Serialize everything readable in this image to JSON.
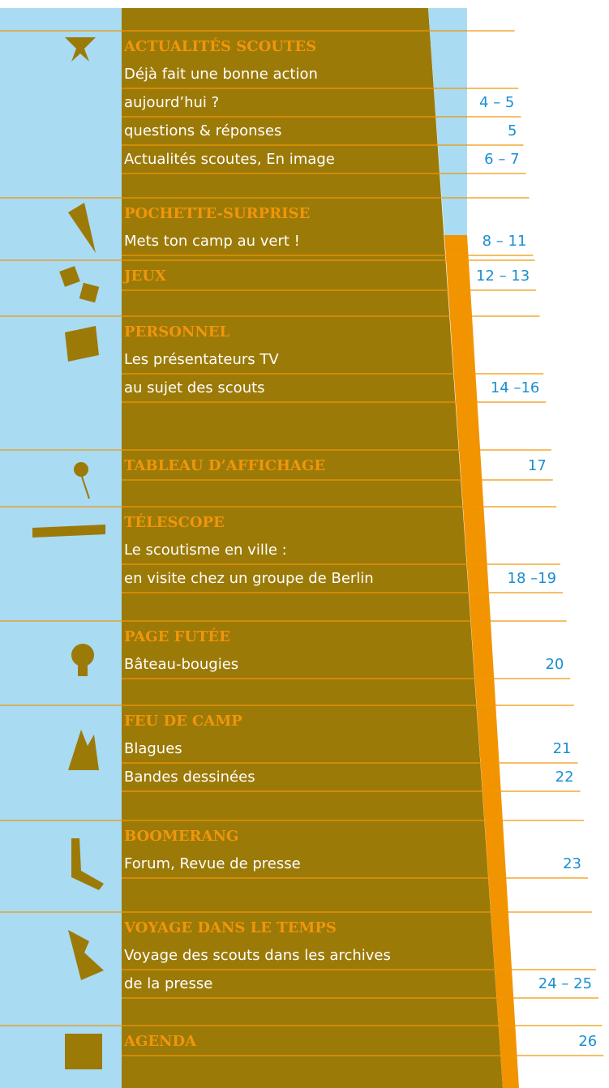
{
  "sections": [
    {
      "title": "ACTUALITÉS SCOUTES",
      "items": [
        {
          "lines": [
            "Déjà fait une bonne action",
            "aujourd’hui ?"
          ],
          "pages": "4 – 5"
        },
        {
          "lines": [
            "questions & réponses"
          ],
          "pages": "5"
        },
        {
          "lines": [
            "Actualités scoutes, En image"
          ],
          "pages": "6 – 7"
        }
      ]
    },
    {
      "title": "POCHETTE-SURPRISE",
      "items": [
        {
          "lines": [
            "Mets ton camp au vert !"
          ],
          "pages": "8 – 11"
        }
      ]
    },
    {
      "title": "JEUX",
      "pages": "12 – 13",
      "items": []
    },
    {
      "title": "PERSONNEL",
      "items": [
        {
          "lines": [
            "Les présentateurs TV",
            "au sujet des scouts"
          ],
          "pages": "14 –16"
        }
      ]
    },
    {
      "title": "TABLEAU D’AFFICHAGE",
      "pages": "17",
      "items": []
    },
    {
      "title": "TÉLESCOPE",
      "items": [
        {
          "lines": [
            "Le scoutisme en ville :",
            "en visite chez un groupe de Berlin"
          ],
          "pages": "18 –19"
        }
      ]
    },
    {
      "title": "PAGE FUTÉE",
      "items": [
        {
          "lines": [
            "Bâteau-bougies"
          ],
          "pages": "20"
        }
      ]
    },
    {
      "title": "FEU DE CAMP",
      "items": [
        {
          "lines": [
            "Blagues"
          ],
          "pages": "21"
        },
        {
          "lines": [
            "Bandes dessinées"
          ],
          "pages": "22"
        }
      ]
    },
    {
      "title": "BOOMERANG",
      "items": [
        {
          "lines": [
            "Forum, Revue de presse"
          ],
          "pages": "23"
        }
      ]
    },
    {
      "title": "VOYAGE DANS LE TEMPS",
      "items": [
        {
          "lines": [
            "Voyage des scouts dans les archives",
            "de la presse"
          ],
          "pages": "24 – 25"
        }
      ]
    },
    {
      "title": "AGENDA",
      "pages": "26",
      "items": []
    }
  ]
}
